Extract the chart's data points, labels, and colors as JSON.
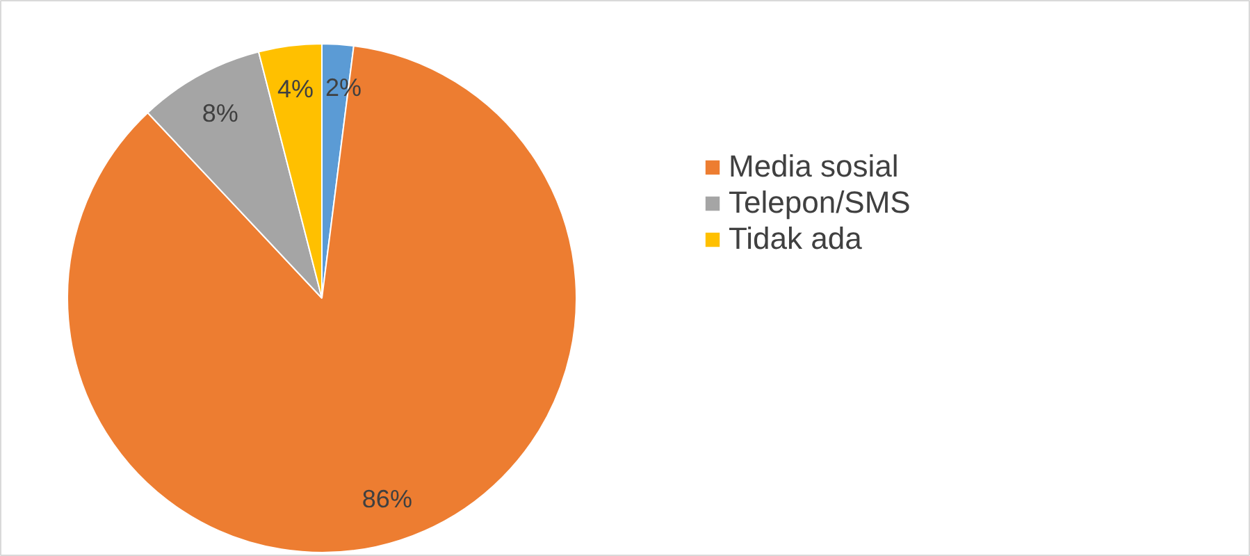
{
  "chart_data": {
    "type": "pie",
    "categories": [
      null,
      "Media sosial",
      "Telepon/SMS",
      "Tidak ada"
    ],
    "values": [
      2,
      86,
      8,
      4
    ],
    "colors": [
      "#5b9bd5",
      "#ed7d31",
      "#a5a5a5",
      "#ffc000"
    ],
    "value_labels": [
      "2%",
      "86%",
      "8%",
      "4%"
    ],
    "legend": "right"
  }
}
